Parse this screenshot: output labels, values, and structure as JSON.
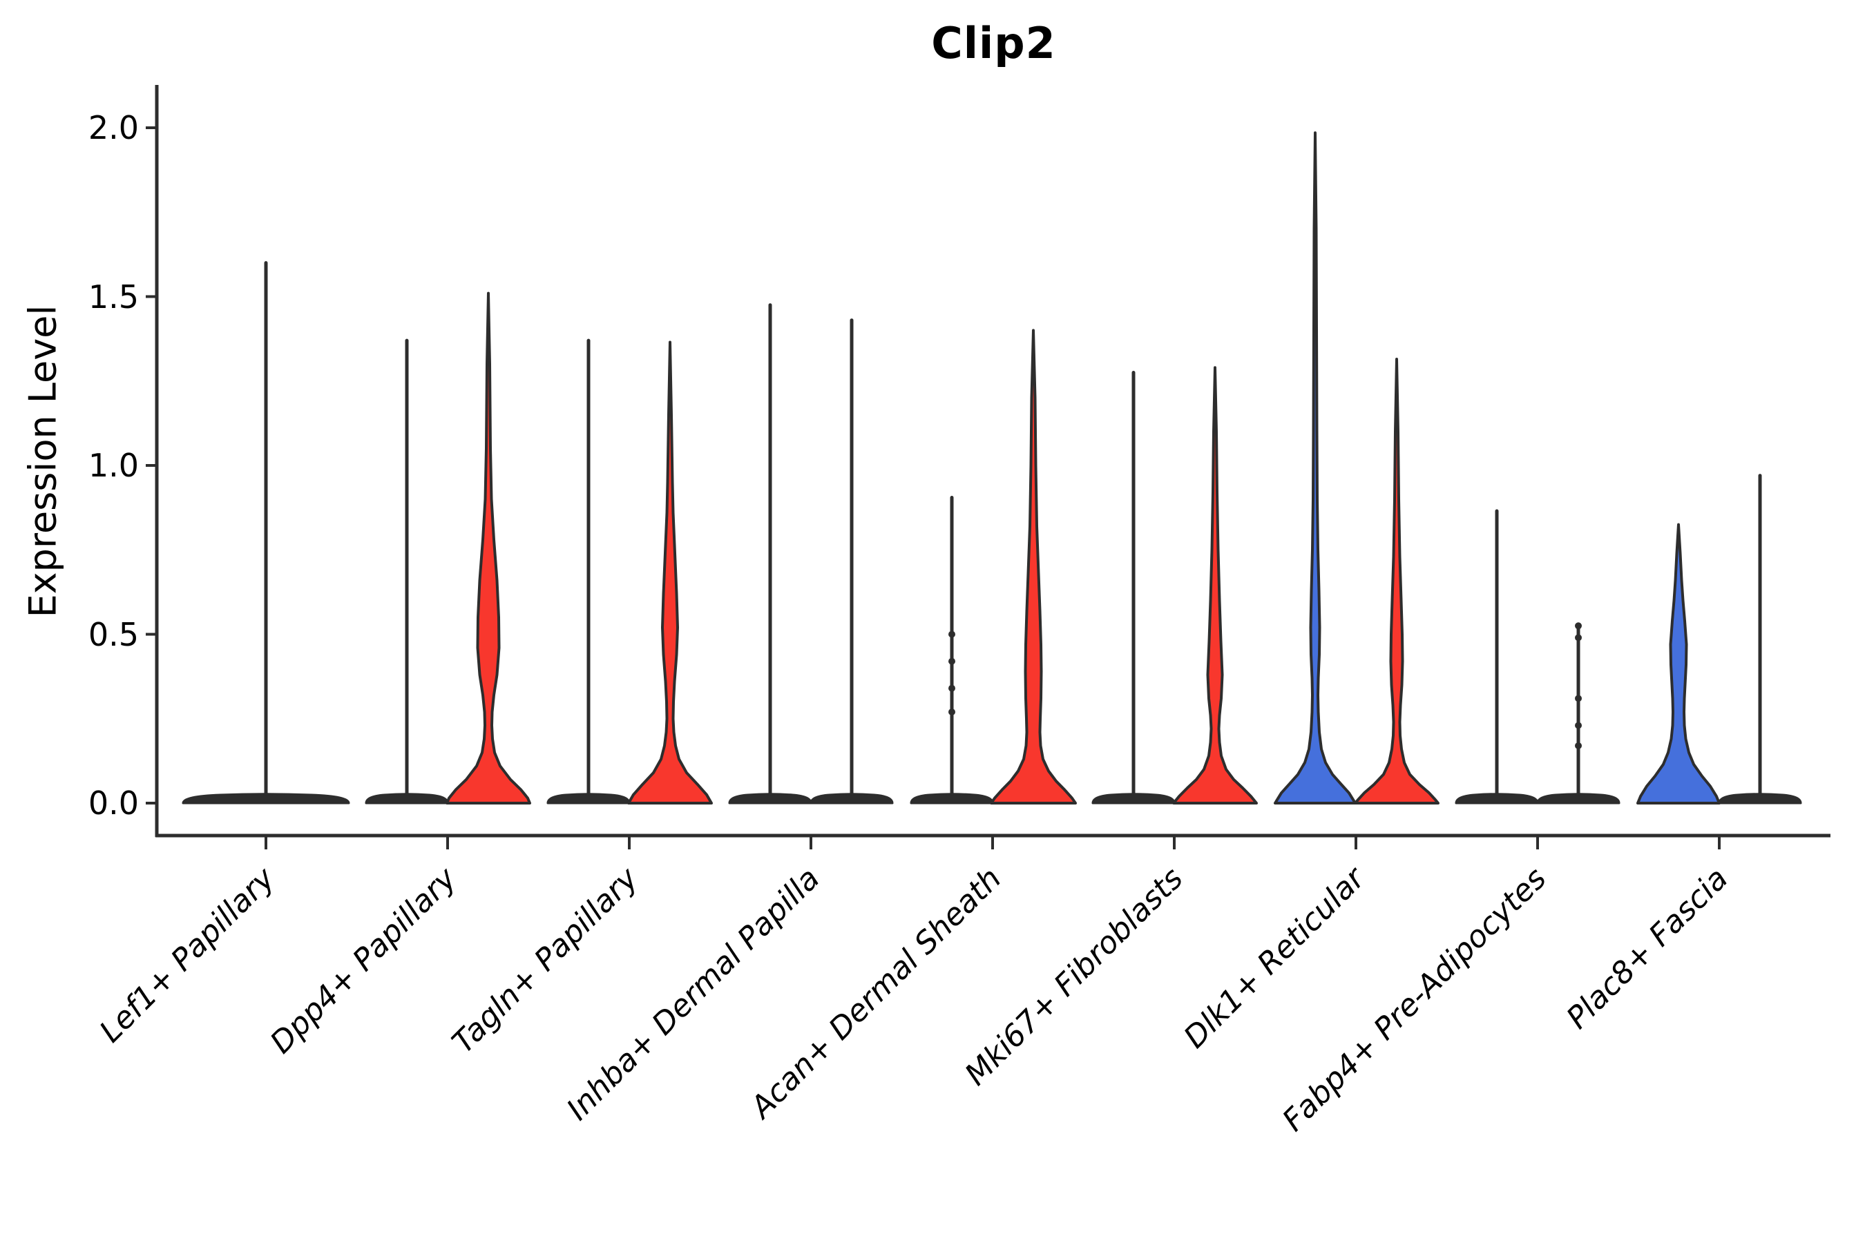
{
  "title": "Clip2",
  "y_axis_label": "Expression Level",
  "y_tick_labels": [
    "0.0",
    "0.5",
    "1.0",
    "1.5",
    "2.0"
  ],
  "chart_data": {
    "type": "violin",
    "title": "Clip2",
    "ylabel": "Expression Level",
    "xlabel": "",
    "ylim": [
      0.0,
      2.0
    ],
    "y_ticks": [
      0.0,
      0.5,
      1.0,
      1.5,
      2.0
    ],
    "grid": false,
    "legend": "none",
    "colors": {
      "red": "#f8372d",
      "blue": "#4570dc",
      "stroke": "#2d2d2d"
    },
    "categories": [
      "Lef1+ Papillary",
      "Dpp4+ Papillary",
      "Tagln+ Papillary",
      "Inhba+ Dermal Papilla",
      "Acan+ Dermal Sheath",
      "Mki67+ Fibroblasts",
      "Dlk1+ Reticular",
      "Fabp4+ Pre-Adipocytes",
      "Plac8+ Fascia"
    ],
    "violins": [
      {
        "category": "Lef1+ Papillary",
        "cat": 0,
        "slot": 0,
        "fill": "none",
        "max": 1.6,
        "pancake_half": 120,
        "dots": []
      },
      {
        "category": "Dpp4+ Papillary",
        "cat": 1,
        "slot": 1,
        "fill": "none",
        "max": 1.37,
        "pancake_half": 59,
        "dots": []
      },
      {
        "category": "Dpp4+ Papillary",
        "cat": 1,
        "slot": 2,
        "fill": "red",
        "max": 1.51,
        "pancake_half": 60,
        "dots": [],
        "profile": [
          [
            1.51,
            0
          ],
          [
            1.3,
            2
          ],
          [
            1.05,
            3
          ],
          [
            0.9,
            4.5
          ],
          [
            0.78,
            8
          ],
          [
            0.66,
            12.5
          ],
          [
            0.55,
            15
          ],
          [
            0.46,
            15.5
          ],
          [
            0.38,
            12.5
          ],
          [
            0.32,
            8
          ],
          [
            0.27,
            5.5
          ],
          [
            0.23,
            5
          ],
          [
            0.19,
            6
          ],
          [
            0.15,
            9
          ],
          [
            0.11,
            17
          ],
          [
            0.07,
            32
          ],
          [
            0.04,
            47
          ],
          [
            0.015,
            57
          ],
          [
            0,
            60
          ]
        ]
      },
      {
        "category": "Tagln+ Papillary",
        "cat": 2,
        "slot": 1,
        "fill": "none",
        "max": 1.37,
        "pancake_half": 59,
        "dots": []
      },
      {
        "category": "Tagln+ Papillary",
        "cat": 2,
        "slot": 2,
        "fill": "red",
        "max": 1.365,
        "pancake_half": 60,
        "dots": [],
        "profile": [
          [
            1.365,
            0
          ],
          [
            1.15,
            2
          ],
          [
            0.95,
            3.5
          ],
          [
            0.86,
            4.5
          ],
          [
            0.74,
            7
          ],
          [
            0.62,
            9.5
          ],
          [
            0.52,
            11
          ],
          [
            0.44,
            9.5
          ],
          [
            0.36,
            6.5
          ],
          [
            0.3,
            5
          ],
          [
            0.25,
            4.5
          ],
          [
            0.21,
            5.5
          ],
          [
            0.17,
            8
          ],
          [
            0.13,
            13
          ],
          [
            0.09,
            24
          ],
          [
            0.055,
            40
          ],
          [
            0.025,
            53
          ],
          [
            0,
            60
          ]
        ]
      },
      {
        "category": "Inhba+ Dermal Papilla",
        "cat": 3,
        "slot": 1,
        "fill": "none",
        "max": 1.475,
        "pancake_half": 59,
        "dots": []
      },
      {
        "category": "Inhba+ Dermal Papilla",
        "cat": 3,
        "slot": 2,
        "fill": "none",
        "max": 1.43,
        "pancake_half": 59,
        "dots": []
      },
      {
        "category": "Acan+ Dermal Sheath",
        "cat": 4,
        "slot": 1,
        "fill": "none",
        "max": 0.905,
        "pancake_half": 59,
        "dots": [
          0.5,
          0.42,
          0.34,
          0.27
        ]
      },
      {
        "category": "Acan+ Dermal Sheath",
        "cat": 4,
        "slot": 2,
        "fill": "red",
        "max": 1.4,
        "pancake_half": 61,
        "dots": [],
        "profile": [
          [
            1.4,
            0
          ],
          [
            1.2,
            2.5
          ],
          [
            1.0,
            3.5
          ],
          [
            0.82,
            5
          ],
          [
            0.68,
            7.5
          ],
          [
            0.57,
            9.5
          ],
          [
            0.47,
            11
          ],
          [
            0.39,
            11.5
          ],
          [
            0.31,
            11
          ],
          [
            0.25,
            10
          ],
          [
            0.21,
            9.5
          ],
          [
            0.17,
            10.5
          ],
          [
            0.13,
            14
          ],
          [
            0.095,
            22
          ],
          [
            0.065,
            33
          ],
          [
            0.04,
            45
          ],
          [
            0.015,
            56
          ],
          [
            0,
            61
          ]
        ]
      },
      {
        "category": "Mki67+ Fibroblasts",
        "cat": 5,
        "slot": 1,
        "fill": "none",
        "max": 1.275,
        "pancake_half": 59,
        "dots": []
      },
      {
        "category": "Mki67+ Fibroblasts",
        "cat": 5,
        "slot": 2,
        "fill": "red",
        "max": 1.29,
        "pancake_half": 60,
        "dots": [],
        "profile": [
          [
            1.29,
            0
          ],
          [
            1.1,
            2
          ],
          [
            0.92,
            3
          ],
          [
            0.75,
            4.5
          ],
          [
            0.6,
            6.5
          ],
          [
            0.48,
            8.5
          ],
          [
            0.38,
            10.5
          ],
          [
            0.31,
            9
          ],
          [
            0.26,
            6.5
          ],
          [
            0.22,
            5.5
          ],
          [
            0.18,
            6.5
          ],
          [
            0.14,
            9
          ],
          [
            0.1,
            16
          ],
          [
            0.07,
            27
          ],
          [
            0.045,
            40
          ],
          [
            0.02,
            52
          ],
          [
            0,
            60
          ]
        ]
      },
      {
        "category": "Dlk1+ Reticular",
        "cat": 6,
        "slot": 1,
        "fill": "blue",
        "max": 1.985,
        "pancake_half": 58,
        "dots": [],
        "profile": [
          [
            1.985,
            0
          ],
          [
            1.7,
            1.5
          ],
          [
            1.4,
            2
          ],
          [
            1.1,
            2.5
          ],
          [
            0.9,
            3
          ],
          [
            0.75,
            4
          ],
          [
            0.63,
            5.5
          ],
          [
            0.52,
            6.5
          ],
          [
            0.44,
            6
          ],
          [
            0.37,
            4.5
          ],
          [
            0.32,
            4
          ],
          [
            0.27,
            4.5
          ],
          [
            0.21,
            6
          ],
          [
            0.16,
            9
          ],
          [
            0.12,
            15
          ],
          [
            0.085,
            25
          ],
          [
            0.055,
            38
          ],
          [
            0.03,
            49
          ],
          [
            0.01,
            55
          ],
          [
            0,
            58
          ]
        ]
      },
      {
        "category": "Dlk1+ Reticular",
        "cat": 6,
        "slot": 2,
        "fill": "red",
        "max": 1.315,
        "pancake_half": 60,
        "dots": [],
        "profile": [
          [
            1.315,
            0
          ],
          [
            1.1,
            2
          ],
          [
            0.9,
            3
          ],
          [
            0.73,
            4.5
          ],
          [
            0.6,
            6.5
          ],
          [
            0.5,
            8
          ],
          [
            0.42,
            8.5
          ],
          [
            0.35,
            7.5
          ],
          [
            0.29,
            5.5
          ],
          [
            0.24,
            4.5
          ],
          [
            0.2,
            5
          ],
          [
            0.16,
            7
          ],
          [
            0.12,
            11
          ],
          [
            0.085,
            19
          ],
          [
            0.055,
            33
          ],
          [
            0.03,
            47
          ],
          [
            0.01,
            56
          ],
          [
            0,
            60
          ]
        ]
      },
      {
        "category": "Fabp4+ Pre-Adipocytes",
        "cat": 7,
        "slot": 1,
        "fill": "none",
        "max": 0.865,
        "pancake_half": 59,
        "dots": []
      },
      {
        "category": "Fabp4+ Pre-Adipocytes",
        "cat": 7,
        "slot": 2,
        "fill": "none",
        "max": 0.525,
        "pancake_half": 59,
        "dots": [
          0.525,
          0.49,
          0.31,
          0.23,
          0.17
        ]
      },
      {
        "category": "Plac8+ Fascia",
        "cat": 8,
        "slot": 1,
        "fill": "blue",
        "max": 0.825,
        "pancake_half": 59,
        "dots": [],
        "profile": [
          [
            0.825,
            0
          ],
          [
            0.74,
            2.5
          ],
          [
            0.66,
            4.5
          ],
          [
            0.6,
            6.5
          ],
          [
            0.54,
            9
          ],
          [
            0.47,
            11.5
          ],
          [
            0.41,
            11
          ],
          [
            0.35,
            9.5
          ],
          [
            0.31,
            8.5
          ],
          [
            0.27,
            8
          ],
          [
            0.23,
            8.5
          ],
          [
            0.19,
            10.5
          ],
          [
            0.15,
            15
          ],
          [
            0.115,
            22
          ],
          [
            0.08,
            34
          ],
          [
            0.05,
            46
          ],
          [
            0.02,
            55
          ],
          [
            0,
            59
          ]
        ]
      },
      {
        "category": "Plac8+ Fascia",
        "cat": 8,
        "slot": 2,
        "fill": "none",
        "max": 0.97,
        "pancake_half": 59,
        "dots": []
      }
    ]
  }
}
